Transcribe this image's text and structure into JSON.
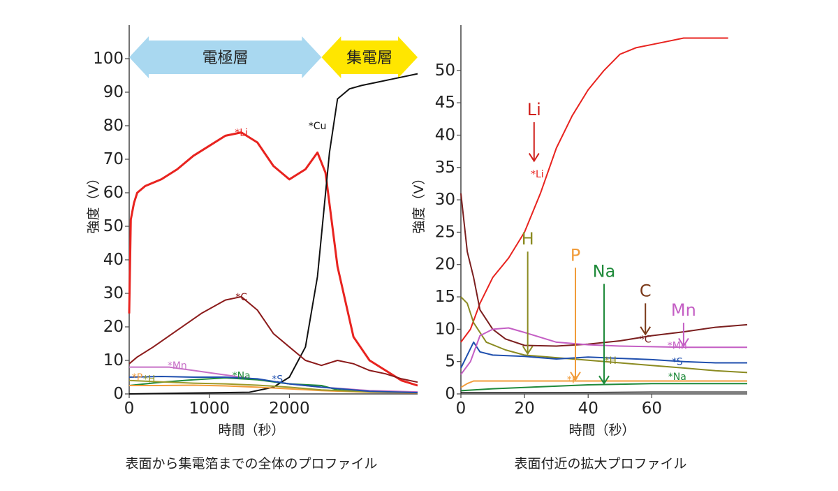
{
  "chart_data": [
    {
      "type": "line",
      "caption": "表面から集電箔までの全体のプロファイル",
      "xlabel": "時間（秒）",
      "ylabel": "強度（V）",
      "xlim": [
        0,
        3600
      ],
      "ylim": [
        0,
        110
      ],
      "xticks": [
        0,
        1000,
        2000
      ],
      "yticks": [
        0,
        10,
        20,
        30,
        40,
        50,
        60,
        70,
        80,
        90,
        100
      ],
      "region_labels": [
        {
          "text": "電極層",
          "x_start": 0,
          "x_end": 2400,
          "y": 100,
          "color": "#a9d8f0"
        },
        {
          "text": "集電層",
          "x_start": 2400,
          "x_end": 3600,
          "y": 100,
          "color": "#ffe600"
        }
      ],
      "series": [
        {
          "name": "Li",
          "marker_text": "*Li",
          "marker_at": [
            1400,
            78
          ],
          "color": "#e8231f",
          "width": 3,
          "points": [
            [
              0,
              24
            ],
            [
              20,
              52
            ],
            [
              60,
              57
            ],
            [
              100,
              60
            ],
            [
              200,
              62
            ],
            [
              400,
              64
            ],
            [
              600,
              67
            ],
            [
              800,
              71
            ],
            [
              1000,
              74
            ],
            [
              1200,
              77
            ],
            [
              1400,
              78
            ],
            [
              1600,
              75
            ],
            [
              1800,
              68
            ],
            [
              2000,
              64
            ],
            [
              2200,
              67
            ],
            [
              2350,
              72
            ],
            [
              2450,
              66
            ],
            [
              2600,
              38
            ],
            [
              2800,
              17
            ],
            [
              3000,
              10
            ],
            [
              3200,
              7
            ],
            [
              3400,
              4
            ],
            [
              3600,
              2.5
            ]
          ]
        },
        {
          "name": "Cu",
          "marker_text": "*Cu",
          "marker_at": [
            2350,
            80
          ],
          "color": "#111111",
          "width": 2,
          "points": [
            [
              0,
              0
            ],
            [
              1500,
              0.5
            ],
            [
              1800,
              2
            ],
            [
              2000,
              5
            ],
            [
              2200,
              14
            ],
            [
              2350,
              35
            ],
            [
              2500,
              72
            ],
            [
              2600,
              88
            ],
            [
              2750,
              91
            ],
            [
              2900,
              92
            ],
            [
              3100,
              93
            ],
            [
              3300,
              94
            ],
            [
              3600,
              95.5
            ]
          ]
        },
        {
          "name": "C",
          "marker_text": "*C",
          "marker_at": [
            1400,
            29
          ],
          "color": "#8b1a1a",
          "width": 2,
          "points": [
            [
              0,
              9
            ],
            [
              100,
              11
            ],
            [
              300,
              14
            ],
            [
              600,
              19
            ],
            [
              900,
              24
            ],
            [
              1200,
              28
            ],
            [
              1400,
              29
            ],
            [
              1600,
              25
            ],
            [
              1800,
              18
            ],
            [
              2000,
              14
            ],
            [
              2200,
              10
            ],
            [
              2400,
              8.5
            ],
            [
              2600,
              10
            ],
            [
              2800,
              9
            ],
            [
              3000,
              7
            ],
            [
              3200,
              6
            ],
            [
              3400,
              4.5
            ],
            [
              3600,
              3.5
            ]
          ]
        },
        {
          "name": "Mn",
          "marker_text": "*Mn",
          "marker_at": [
            600,
            8.5
          ],
          "color": "#c770c7",
          "width": 2,
          "points": [
            [
              0,
              8
            ],
            [
              200,
              8
            ],
            [
              500,
              8
            ],
            [
              800,
              7
            ],
            [
              1100,
              6
            ],
            [
              1400,
              5
            ],
            [
              1700,
              4
            ],
            [
              2000,
              3
            ],
            [
              2400,
              2
            ],
            [
              3000,
              1
            ],
            [
              3600,
              0.6
            ]
          ]
        },
        {
          "name": "Na",
          "marker_text": "*Na",
          "marker_at": [
            1400,
            5.5
          ],
          "color": "#1f8a3a",
          "width": 2,
          "points": [
            [
              0,
              2.5
            ],
            [
              400,
              3.5
            ],
            [
              800,
              4.2
            ],
            [
              1200,
              4.8
            ],
            [
              1600,
              4.2
            ],
            [
              2000,
              3
            ],
            [
              2400,
              2.5
            ],
            [
              2600,
              1.2
            ],
            [
              3000,
              0.6
            ],
            [
              3600,
              0.4
            ]
          ]
        },
        {
          "name": "P",
          "marker_text": "*P",
          "marker_at": [
            100,
            5
          ],
          "color": "#f19c3a",
          "width": 2,
          "points": [
            [
              0,
              2.5
            ],
            [
              400,
              2.5
            ],
            [
              800,
              2.6
            ],
            [
              1200,
              2.4
            ],
            [
              1600,
              2
            ],
            [
              2000,
              1.5
            ],
            [
              2400,
              1
            ],
            [
              3000,
              0.5
            ],
            [
              3600,
              0.3
            ]
          ]
        },
        {
          "name": "H",
          "marker_text": "*H",
          "marker_at": [
            250,
            4.5
          ],
          "color": "#9a9a2a",
          "width": 2,
          "points": [
            [
              0,
              4
            ],
            [
              400,
              3.6
            ],
            [
              800,
              3.2
            ],
            [
              1200,
              3
            ],
            [
              1600,
              2.6
            ],
            [
              2000,
              2
            ],
            [
              2400,
              1.2
            ],
            [
              3000,
              0.6
            ],
            [
              3600,
              0.4
            ]
          ]
        },
        {
          "name": "S",
          "marker_text": "*S",
          "marker_at": [
            1850,
            4.5
          ],
          "color": "#1f4fae",
          "width": 2,
          "points": [
            [
              0,
              5
            ],
            [
              400,
              5.2
            ],
            [
              800,
              5
            ],
            [
              1200,
              5
            ],
            [
              1600,
              4.5
            ],
            [
              2000,
              3
            ],
            [
              2400,
              2
            ],
            [
              3000,
              0.8
            ],
            [
              3600,
              0.4
            ]
          ]
        }
      ]
    },
    {
      "type": "line",
      "caption": "表面付近の拡大プロファイル",
      "xlabel": "時間（秒）",
      "ylabel": "強度（V）",
      "xlim": [
        0,
        90
      ],
      "ylim": [
        0,
        57
      ],
      "xticks": [
        0,
        20,
        40,
        60
      ],
      "yticks": [
        0,
        5,
        10,
        15,
        20,
        25,
        30,
        35,
        40,
        45,
        50
      ],
      "series": [
        {
          "name": "Li",
          "marker_text": "*Li",
          "marker_at": [
            24,
            34
          ],
          "color": "#e8231f",
          "width": 2,
          "points": [
            [
              0,
              8
            ],
            [
              3,
              10
            ],
            [
              6,
              14
            ],
            [
              10,
              18
            ],
            [
              15,
              21
            ],
            [
              20,
              25
            ],
            [
              25,
              31
            ],
            [
              30,
              38
            ],
            [
              35,
              43
            ],
            [
              40,
              47
            ],
            [
              45,
              50
            ],
            [
              50,
              52.5
            ],
            [
              55,
              53.5
            ],
            [
              60,
              54
            ],
            [
              65,
              54.5
            ],
            [
              70,
              55
            ],
            [
              75,
              55
            ],
            [
              84,
              55
            ]
          ]
        },
        {
          "name": "C",
          "marker_text": "*C",
          "marker_at": [
            58,
            8.5
          ],
          "color": "#7b1f1f",
          "width": 2,
          "points": [
            [
              0,
              31
            ],
            [
              2,
              22
            ],
            [
              4,
              18
            ],
            [
              6,
              13
            ],
            [
              10,
              10
            ],
            [
              14,
              8.5
            ],
            [
              20,
              7.5
            ],
            [
              30,
              7.4
            ],
            [
              40,
              7.7
            ],
            [
              50,
              8.2
            ],
            [
              60,
              9
            ],
            [
              70,
              9.6
            ],
            [
              80,
              10.3
            ],
            [
              90,
              10.7
            ]
          ]
        },
        {
          "name": "H",
          "marker_text": "*H",
          "marker_at": [
            47,
            5.2
          ],
          "color": "#8b8b22",
          "width": 2,
          "points": [
            [
              0,
              15
            ],
            [
              2,
              14
            ],
            [
              4,
              11
            ],
            [
              8,
              8
            ],
            [
              14,
              6.8
            ],
            [
              20,
              6
            ],
            [
              30,
              5.6
            ],
            [
              40,
              5.2
            ],
            [
              50,
              4.8
            ],
            [
              60,
              4.4
            ],
            [
              70,
              4
            ],
            [
              80,
              3.6
            ],
            [
              90,
              3.3
            ]
          ]
        },
        {
          "name": "S",
          "marker_text": "*S",
          "marker_at": [
            68,
            5
          ],
          "color": "#1f4fae",
          "width": 2,
          "points": [
            [
              0,
              4
            ],
            [
              2,
              6
            ],
            [
              4,
              8
            ],
            [
              6,
              6.5
            ],
            [
              10,
              6
            ],
            [
              20,
              5.8
            ],
            [
              30,
              5.4
            ],
            [
              40,
              5.7
            ],
            [
              50,
              5.5
            ],
            [
              60,
              5.3
            ],
            [
              70,
              5
            ],
            [
              80,
              4.8
            ],
            [
              90,
              4.8
            ]
          ]
        },
        {
          "name": "Mn",
          "marker_text": "*Mn",
          "marker_at": [
            68,
            7.5
          ],
          "color": "#c45ec4",
          "width": 2,
          "points": [
            [
              0,
              3
            ],
            [
              3,
              5
            ],
            [
              6,
              9
            ],
            [
              10,
              10
            ],
            [
              15,
              10.2
            ],
            [
              20,
              9.5
            ],
            [
              30,
              8
            ],
            [
              40,
              7.6
            ],
            [
              50,
              7.4
            ],
            [
              60,
              7.3
            ],
            [
              70,
              7.2
            ],
            [
              80,
              7.2
            ],
            [
              90,
              7.2
            ]
          ]
        },
        {
          "name": "P",
          "marker_text": "*P",
          "marker_at": [
            35,
            2.2
          ],
          "color": "#f19c3a",
          "width": 2,
          "points": [
            [
              0,
              1
            ],
            [
              2,
              1.6
            ],
            [
              4,
              2
            ],
            [
              10,
              2
            ],
            [
              20,
              2
            ],
            [
              30,
              2
            ],
            [
              40,
              2
            ],
            [
              50,
              2
            ],
            [
              60,
              2
            ],
            [
              70,
              2
            ],
            [
              80,
              2
            ],
            [
              90,
              2
            ]
          ]
        },
        {
          "name": "Na",
          "marker_text": "*Na",
          "marker_at": [
            68,
            2.7
          ],
          "color": "#1f8a3a",
          "width": 2,
          "points": [
            [
              0,
              0.5
            ],
            [
              10,
              0.8
            ],
            [
              20,
              1
            ],
            [
              30,
              1.2
            ],
            [
              40,
              1.4
            ],
            [
              50,
              1.5
            ],
            [
              60,
              1.6
            ],
            [
              70,
              1.6
            ],
            [
              80,
              1.6
            ],
            [
              90,
              1.6
            ]
          ]
        },
        {
          "name": "Cu",
          "marker_text": "",
          "marker_at": [
            0,
            0
          ],
          "color": "#111111",
          "width": 1.5,
          "points": [
            [
              0,
              0.2
            ],
            [
              30,
              0.2
            ],
            [
              60,
              0.3
            ],
            [
              90,
              0.3
            ]
          ]
        }
      ],
      "annotations": [
        {
          "label": "Li",
          "color": "#d0201c",
          "arrow_x": 23,
          "arrow_from_y": 42,
          "arrow_to_y": 36
        },
        {
          "label": "H",
          "color": "#8b8b22",
          "arrow_x": 21,
          "arrow_from_y": 22,
          "arrow_to_y": 6.2
        },
        {
          "label": "P",
          "color": "#f19c3a",
          "arrow_x": 36,
          "arrow_from_y": 19.5,
          "arrow_to_y": 2.2
        },
        {
          "label": "Na",
          "color": "#1f8a3a",
          "arrow_x": 45,
          "arrow_from_y": 17,
          "arrow_to_y": 1.6
        },
        {
          "label": "C",
          "color": "#7b3a1a",
          "arrow_x": 58,
          "arrow_from_y": 14,
          "arrow_to_y": 9.2
        },
        {
          "label": "Mn",
          "color": "#c45ec4",
          "arrow_x": 70,
          "arrow_from_y": 11,
          "arrow_to_y": 7.4
        }
      ]
    }
  ]
}
